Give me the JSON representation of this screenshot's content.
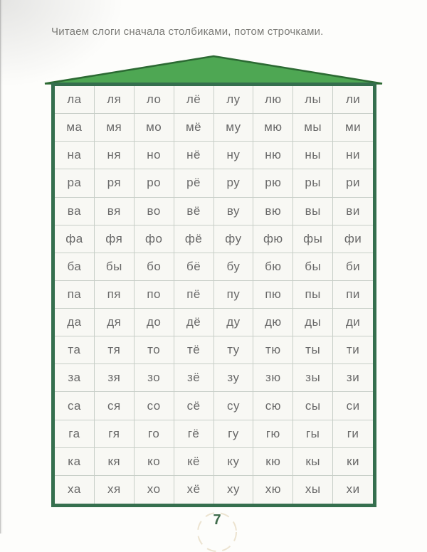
{
  "page": {
    "instruction": "Читаем слоги сначала столбиками, потом строчками.",
    "page_number": "7"
  },
  "syllable_table": {
    "columns": 8,
    "rows": [
      [
        "ла",
        "ля",
        "ло",
        "лё",
        "лу",
        "лю",
        "лы",
        "ли"
      ],
      [
        "ма",
        "мя",
        "мо",
        "мё",
        "му",
        "мю",
        "мы",
        "ми"
      ],
      [
        "на",
        "ня",
        "но",
        "нё",
        "ну",
        "ню",
        "ны",
        "ни"
      ],
      [
        "ра",
        "ря",
        "ро",
        "рё",
        "ру",
        "рю",
        "ры",
        "ри"
      ],
      [
        "ва",
        "вя",
        "во",
        "вё",
        "ву",
        "вю",
        "вы",
        "ви"
      ],
      [
        "фа",
        "фя",
        "фо",
        "фё",
        "фу",
        "фю",
        "фы",
        "фи"
      ],
      [
        "ба",
        "бы",
        "бо",
        "бё",
        "бу",
        "бю",
        "бы",
        "би"
      ],
      [
        "па",
        "пя",
        "по",
        "пё",
        "пу",
        "пю",
        "пы",
        "пи"
      ],
      [
        "да",
        "дя",
        "до",
        "дё",
        "ду",
        "дю",
        "ды",
        "ди"
      ],
      [
        "та",
        "тя",
        "то",
        "тё",
        "ту",
        "тю",
        "ты",
        "ти"
      ],
      [
        "за",
        "зя",
        "зо",
        "зё",
        "зу",
        "зю",
        "зы",
        "зи"
      ],
      [
        "са",
        "ся",
        "со",
        "сё",
        "су",
        "сю",
        "сы",
        "си"
      ],
      [
        "га",
        "гя",
        "го",
        "гё",
        "гу",
        "гю",
        "гы",
        "ги"
      ],
      [
        "ка",
        "кя",
        "ко",
        "кё",
        "ку",
        "кю",
        "кы",
        "ки"
      ],
      [
        "ха",
        "хя",
        "хо",
        "хё",
        "ху",
        "хю",
        "хы",
        "хи"
      ]
    ]
  },
  "colors": {
    "roof_fill": "#4ea753",
    "roof_stroke": "#2c6a33",
    "table_border": "#356f4e",
    "grid_line": "#c7cec7",
    "cell_text": "#696969",
    "page_number_green": "#3f6b4b",
    "arc_cream": "#ece3d0"
  }
}
